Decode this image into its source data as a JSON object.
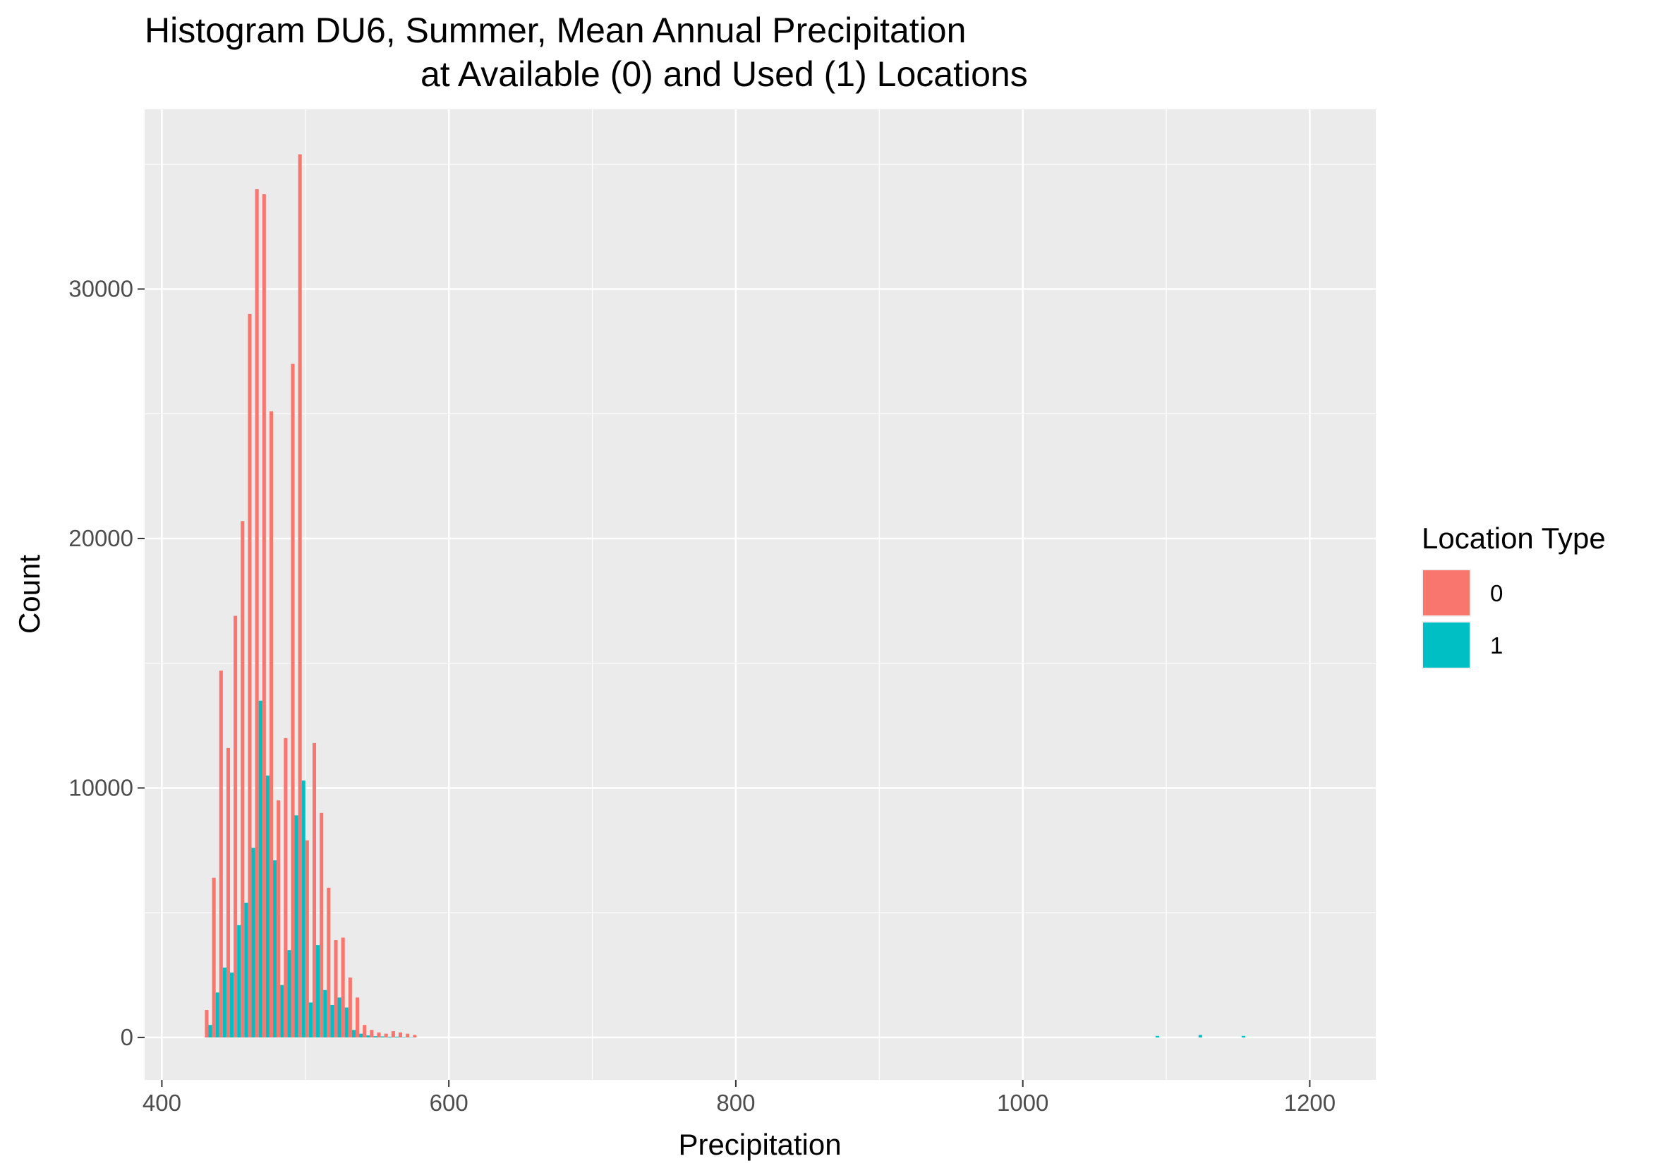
{
  "chart_data": {
    "type": "bar",
    "title": "Histogram DU6, Summer, Mean Annual Precipitation",
    "subtitle": "at Available (0) and Used (1) Locations",
    "xlabel": "Precipitation",
    "ylabel": "Count",
    "xlim": [
      388,
      1246
    ],
    "ylim": [
      -1700,
      37200
    ],
    "x_ticks": [
      400,
      600,
      800,
      1000,
      1200
    ],
    "y_ticks": [
      0,
      10000,
      20000,
      30000
    ],
    "x_tick_labels": [
      "400",
      "600",
      "800",
      "1000",
      "1200"
    ],
    "y_tick_labels": [
      "0",
      "10000",
      "20000",
      "30000"
    ],
    "grid": true,
    "legend": {
      "title": "Location Type",
      "position": "right"
    },
    "bin_width": 5,
    "x": [
      432.5,
      437.5,
      442.5,
      447.5,
      452.5,
      457.5,
      462.5,
      467.5,
      472.5,
      477.5,
      482.5,
      487.5,
      492.5,
      497.5,
      502.5,
      507.5,
      512.5,
      517.5,
      522.5,
      527.5,
      532.5,
      537.5,
      542.5,
      547.5,
      552.5,
      557.5,
      562.5,
      567.5,
      572.5,
      577.5,
      1092.5,
      1122.5,
      1152.5
    ],
    "series": [
      {
        "name": "0",
        "color": "#F8766D",
        "values": [
          1100,
          6400,
          14700,
          11600,
          16900,
          20700,
          29000,
          34000,
          33800,
          25100,
          9500,
          12000,
          27000,
          35400,
          7900,
          11800,
          9000,
          6000,
          3900,
          4000,
          2400,
          1600,
          500,
          300,
          200,
          150,
          250,
          200,
          150,
          100,
          0,
          0,
          0
        ]
      },
      {
        "name": "1",
        "color": "#00BFC4",
        "values": [
          500,
          1800,
          2800,
          2600,
          4500,
          5400,
          7600,
          13500,
          10500,
          7100,
          2100,
          3500,
          8900,
          10300,
          1400,
          3700,
          1900,
          1300,
          1600,
          1200,
          300,
          150,
          80,
          50,
          40,
          30,
          30,
          20,
          10,
          0,
          60,
          100,
          60
        ]
      }
    ]
  }
}
